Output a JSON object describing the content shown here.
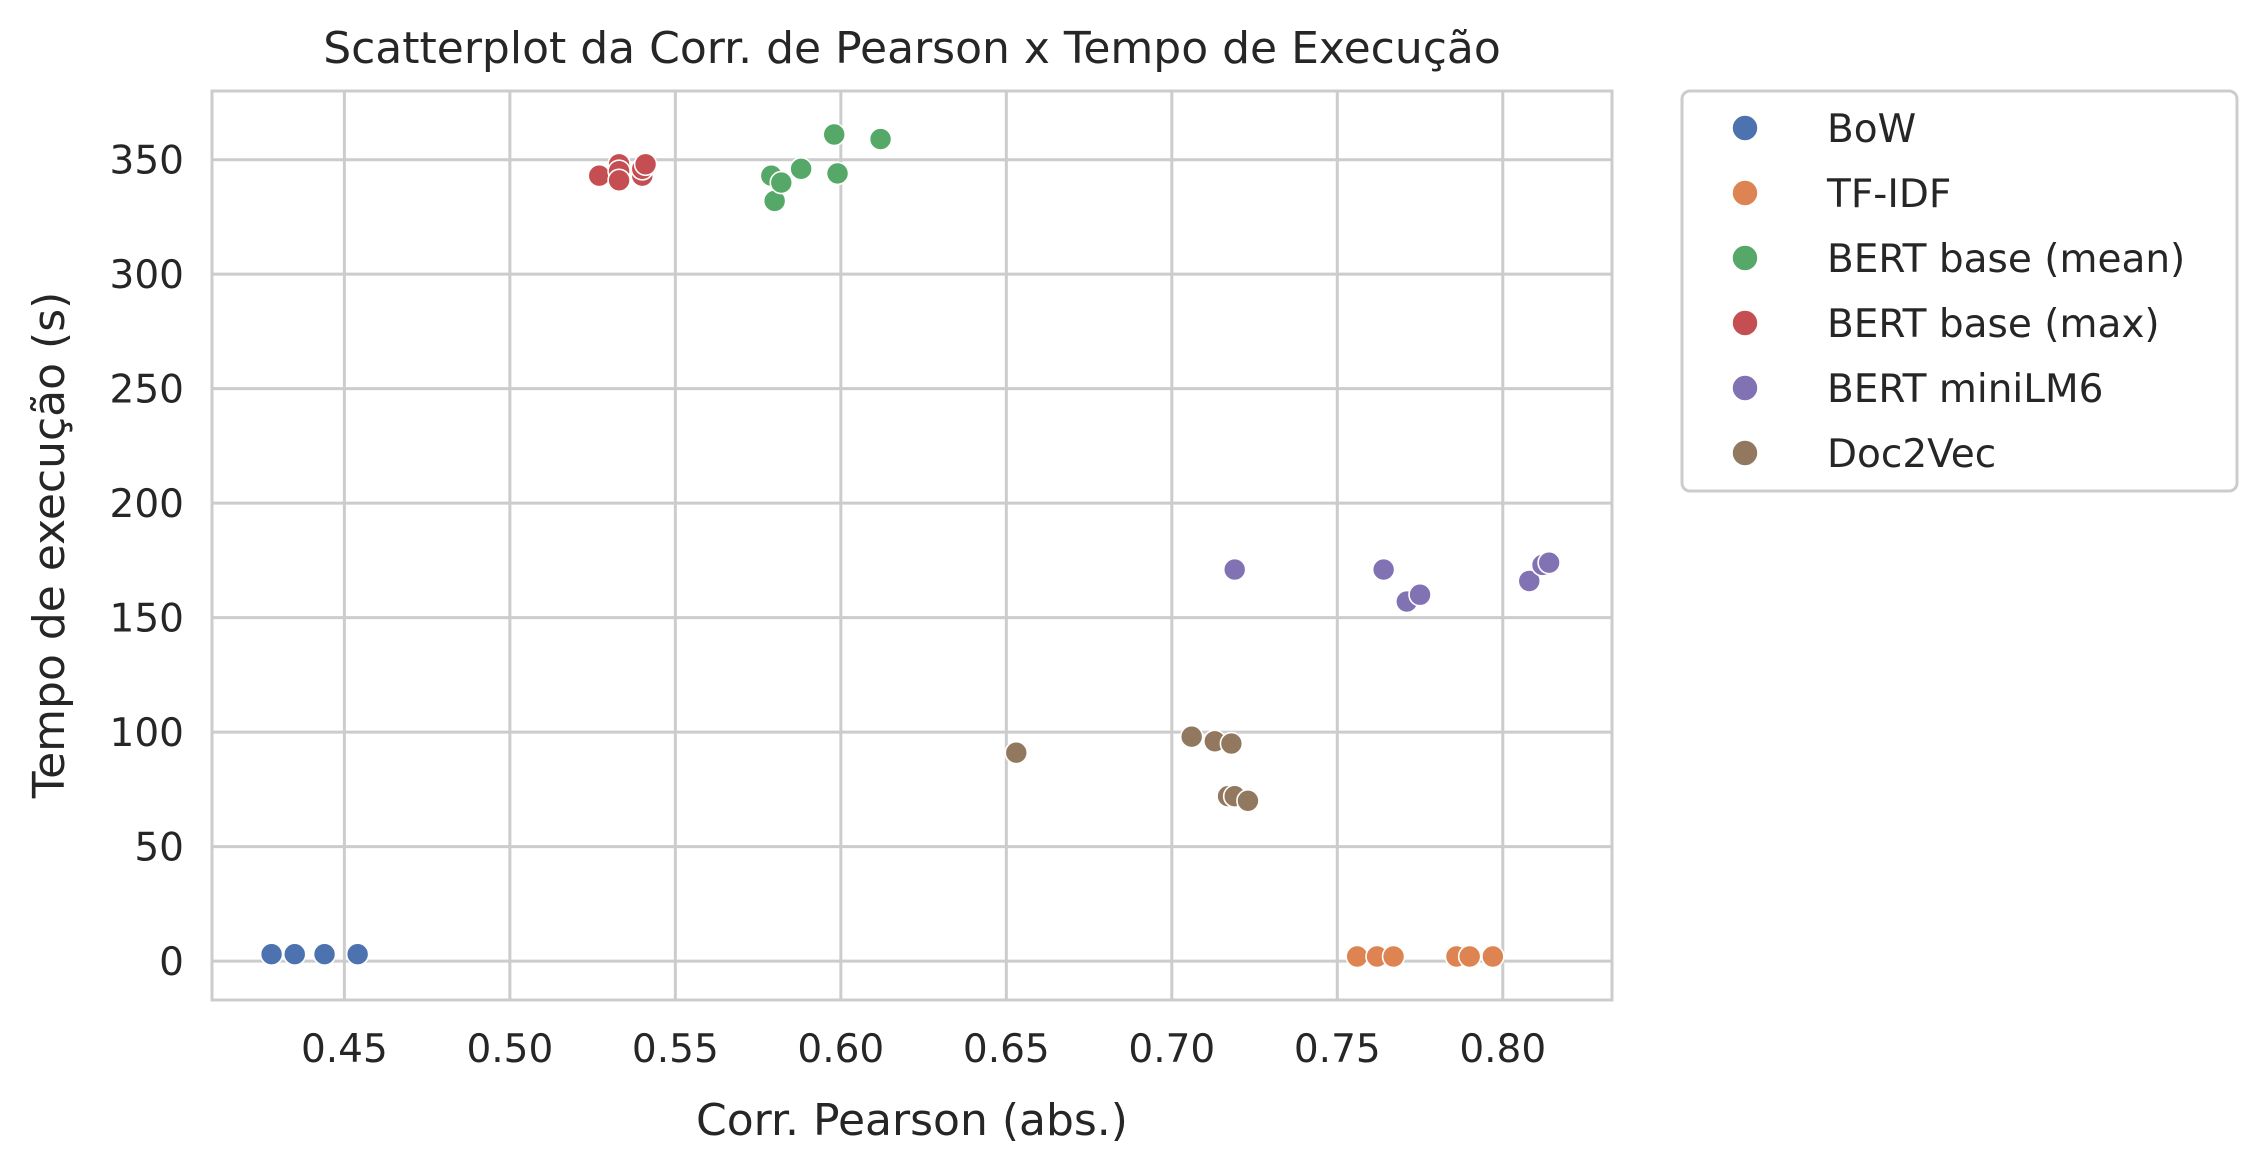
{
  "chart_data": {
    "type": "scatter",
    "title": "Scatterplot da Corr. de Pearson x Tempo de Execução",
    "xlabel": "Corr. Pearson (abs.)",
    "ylabel": "Tempo de execução (s)",
    "xlim": [
      0.41,
      0.833
    ],
    "ylim": [
      -17,
      380
    ],
    "xticks": [
      0.45,
      0.5,
      0.55,
      0.6,
      0.65,
      0.7,
      0.75,
      0.8
    ],
    "xtick_labels": [
      "0.45",
      "0.50",
      "0.55",
      "0.60",
      "0.65",
      "0.70",
      "0.75",
      "0.80"
    ],
    "yticks": [
      0,
      50,
      100,
      150,
      200,
      250,
      300,
      350
    ],
    "ytick_labels": [
      "0",
      "50",
      "100",
      "150",
      "200",
      "250",
      "300",
      "350"
    ],
    "grid": true,
    "legend_position": "outside-right-top",
    "series": [
      {
        "name": "BoW",
        "color": "#4c72b0",
        "points": [
          [
            0.428,
            3
          ],
          [
            0.435,
            3
          ],
          [
            0.444,
            3
          ],
          [
            0.454,
            3
          ]
        ]
      },
      {
        "name": "TF-IDF",
        "color": "#dd8452",
        "points": [
          [
            0.756,
            2
          ],
          [
            0.762,
            2
          ],
          [
            0.767,
            2
          ],
          [
            0.786,
            2
          ],
          [
            0.79,
            2
          ],
          [
            0.797,
            2
          ]
        ]
      },
      {
        "name": "BERT base (mean)",
        "color": "#55a868",
        "points": [
          [
            0.579,
            343
          ],
          [
            0.58,
            332
          ],
          [
            0.582,
            340
          ],
          [
            0.588,
            346
          ],
          [
            0.598,
            361
          ],
          [
            0.599,
            344
          ],
          [
            0.612,
            359
          ]
        ]
      },
      {
        "name": "BERT base (max)",
        "color": "#c44e52",
        "points": [
          [
            0.527,
            343
          ],
          [
            0.533,
            348
          ],
          [
            0.533,
            345
          ],
          [
            0.533,
            341
          ],
          [
            0.54,
            343
          ],
          [
            0.54,
            346
          ],
          [
            0.541,
            348
          ]
        ]
      },
      {
        "name": "BERT miniLM6",
        "color": "#8172b3",
        "points": [
          [
            0.719,
            171
          ],
          [
            0.764,
            171
          ],
          [
            0.771,
            157
          ],
          [
            0.775,
            160
          ],
          [
            0.808,
            166
          ],
          [
            0.812,
            173
          ],
          [
            0.814,
            174
          ]
        ]
      },
      {
        "name": "Doc2Vec",
        "color": "#937860",
        "points": [
          [
            0.653,
            91
          ],
          [
            0.706,
            98
          ],
          [
            0.713,
            96
          ],
          [
            0.718,
            95
          ],
          [
            0.717,
            72
          ],
          [
            0.719,
            72
          ],
          [
            0.723,
            70
          ]
        ]
      }
    ]
  }
}
